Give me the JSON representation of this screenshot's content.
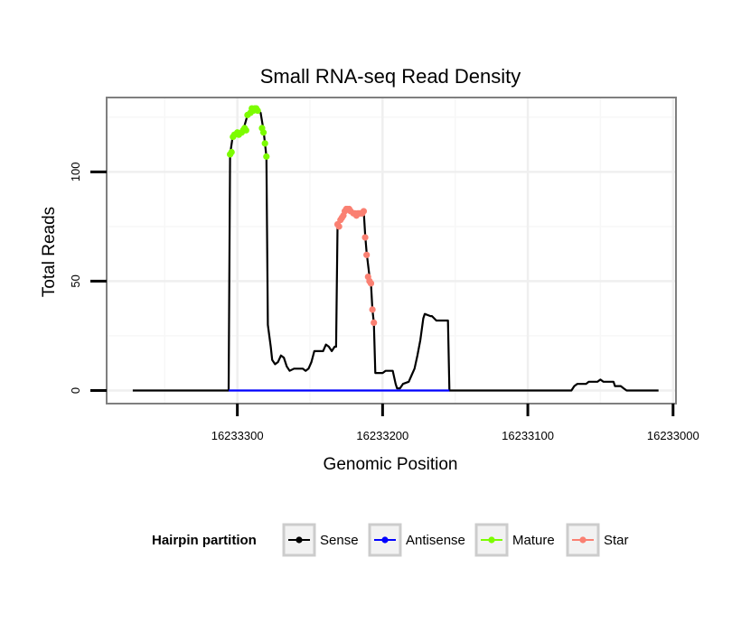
{
  "chart_data": {
    "type": "line",
    "title": "Small RNA-seq Read Density",
    "xlabel": "Genomic Position",
    "ylabel": "Total Reads",
    "x_reversed": true,
    "xlim": [
      16233390,
      16232998
    ],
    "ylim": [
      -6,
      134
    ],
    "xticks": [
      16233300,
      16233200,
      16233100,
      16233000
    ],
    "xtick_labels": [
      "16233300",
      "16233200",
      "16233100",
      "16233000"
    ],
    "yticks": [
      0,
      50,
      100
    ],
    "ytick_labels": [
      "0",
      "50",
      "100"
    ],
    "grid": true,
    "legend": {
      "title": "Hairpin partition",
      "position": "bottom",
      "entries": [
        {
          "label": "Sense",
          "color": "#000000"
        },
        {
          "label": "Antisense",
          "color": "#0000ff"
        },
        {
          "label": "Mature",
          "color": "#7cfc00"
        },
        {
          "label": "Star",
          "color": "#fa8072"
        }
      ]
    },
    "series": [
      {
        "name": "Sense",
        "color": "#000000",
        "points": [
          [
            16233372,
            0
          ],
          [
            16233306,
            0
          ],
          [
            16233305,
            108
          ],
          [
            16233303,
            117
          ],
          [
            16233299,
            118
          ],
          [
            16233296,
            119
          ],
          [
            16233293,
            126
          ],
          [
            16233290,
            129
          ],
          [
            16233287,
            129
          ],
          [
            16233284,
            127
          ],
          [
            16233282,
            119
          ],
          [
            16233281,
            113
          ],
          [
            16233280,
            107
          ],
          [
            16233279,
            30
          ],
          [
            16233277,
            20
          ],
          [
            16233276,
            14
          ],
          [
            16233274,
            12
          ],
          [
            16233272,
            13
          ],
          [
            16233270,
            16
          ],
          [
            16233268,
            15
          ],
          [
            16233266,
            11
          ],
          [
            16233264,
            9
          ],
          [
            16233261,
            10
          ],
          [
            16233255,
            10
          ],
          [
            16233253,
            9
          ],
          [
            16233251,
            10
          ],
          [
            16233249,
            13
          ],
          [
            16233247,
            18
          ],
          [
            16233241,
            18
          ],
          [
            16233239,
            21
          ],
          [
            16233237,
            20
          ],
          [
            16233235,
            18
          ],
          [
            16233233,
            20
          ],
          [
            16233232,
            20
          ],
          [
            16233231,
            75
          ],
          [
            16233229,
            78
          ],
          [
            16233227,
            80
          ],
          [
            16233225,
            83
          ],
          [
            16233222,
            83
          ],
          [
            16233220,
            81
          ],
          [
            16233215,
            81
          ],
          [
            16233213,
            82
          ],
          [
            16233212,
            71
          ],
          [
            16233211,
            63
          ],
          [
            16233209,
            52
          ],
          [
            16233208,
            49
          ],
          [
            16233207,
            37
          ],
          [
            16233206,
            31
          ],
          [
            16233205,
            8
          ],
          [
            16233200,
            8
          ],
          [
            16233198,
            9
          ],
          [
            16233193,
            9
          ],
          [
            16233191,
            3
          ],
          [
            16233190,
            1
          ],
          [
            16233188,
            1
          ],
          [
            16233186,
            3
          ],
          [
            16233182,
            4
          ],
          [
            16233180,
            7
          ],
          [
            16233178,
            10
          ],
          [
            16233176,
            16
          ],
          [
            16233174,
            23
          ],
          [
            16233172,
            33
          ],
          [
            16233171,
            35
          ],
          [
            16233167,
            34
          ],
          [
            16233166,
            34
          ],
          [
            16233163,
            32
          ],
          [
            16233155,
            32
          ],
          [
            16233154,
            0
          ],
          [
            16233070,
            0
          ],
          [
            16233068,
            2
          ],
          [
            16233066,
            3
          ],
          [
            16233060,
            3
          ],
          [
            16233058,
            4
          ],
          [
            16233052,
            4
          ],
          [
            16233050,
            5
          ],
          [
            16233048,
            4
          ],
          [
            16233041,
            4
          ],
          [
            16233040,
            2
          ],
          [
            16233036,
            2
          ],
          [
            16233034,
            1
          ],
          [
            16233032,
            0
          ],
          [
            16233010,
            0
          ]
        ]
      },
      {
        "name": "Antisense",
        "color": "#0000ff",
        "points": [
          [
            16233306,
            0
          ],
          [
            16233154,
            0
          ]
        ]
      },
      {
        "name": "Mature",
        "color": "#7cfc00",
        "points": [
          [
            16233305,
            108
          ],
          [
            16233304,
            109
          ],
          [
            16233303,
            116
          ],
          [
            16233302,
            117
          ],
          [
            16233300,
            118
          ],
          [
            16233299,
            117
          ],
          [
            16233297,
            118
          ],
          [
            16233296,
            119
          ],
          [
            16233295,
            120
          ],
          [
            16233294,
            119
          ],
          [
            16233293,
            126
          ],
          [
            16233291,
            127
          ],
          [
            16233290,
            129
          ],
          [
            16233289,
            128
          ],
          [
            16233288,
            129
          ],
          [
            16233287,
            129
          ],
          [
            16233286,
            128
          ],
          [
            16233283,
            120
          ],
          [
            16233282,
            118
          ],
          [
            16233281,
            113
          ],
          [
            16233280,
            107
          ]
        ]
      },
      {
        "name": "Star",
        "color": "#fa8072",
        "points": [
          [
            16233231,
            76
          ],
          [
            16233230,
            75
          ],
          [
            16233229,
            78
          ],
          [
            16233228,
            79
          ],
          [
            16233227,
            80
          ],
          [
            16233226,
            82
          ],
          [
            16233225,
            83
          ],
          [
            16233224,
            83
          ],
          [
            16233223,
            83
          ],
          [
            16233222,
            82
          ],
          [
            16233220,
            81
          ],
          [
            16233219,
            81
          ],
          [
            16233218,
            80
          ],
          [
            16233217,
            81
          ],
          [
            16233216,
            81
          ],
          [
            16233215,
            81
          ],
          [
            16233214,
            81
          ],
          [
            16233213,
            82
          ],
          [
            16233212,
            70
          ],
          [
            16233211,
            62
          ],
          [
            16233210,
            52
          ],
          [
            16233209,
            50
          ],
          [
            16233208,
            49
          ],
          [
            16233207,
            37
          ],
          [
            16233206,
            31
          ]
        ]
      }
    ]
  }
}
